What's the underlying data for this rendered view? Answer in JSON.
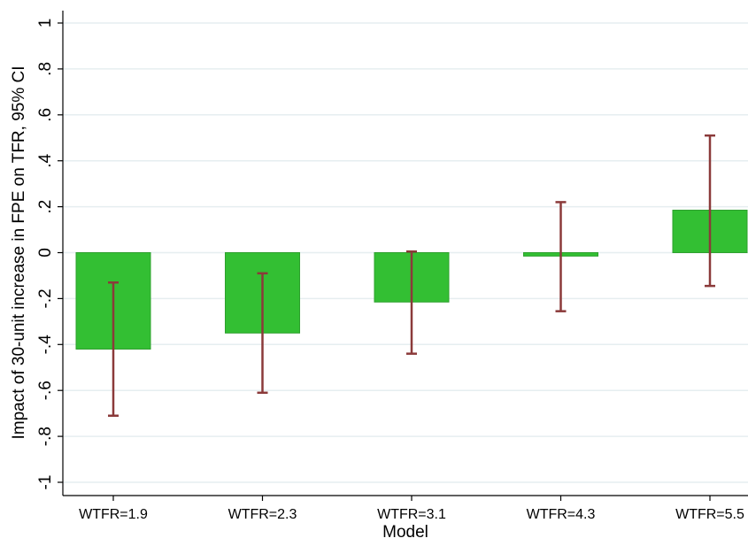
{
  "chart_data": {
    "type": "bar",
    "title": "",
    "xlabel": "Model",
    "ylabel": "Impact of 30-unit increase in FPE on TFR, 95% CI",
    "categories": [
      "WTFR=1.9",
      "WTFR=2.3",
      "WTFR=3.1",
      "WTFR=4.3",
      "WTFR=5.5"
    ],
    "values": [
      -0.42,
      -0.35,
      -0.215,
      -0.015,
      0.185
    ],
    "ci_lower": [
      -0.71,
      -0.61,
      -0.44,
      -0.255,
      -0.145
    ],
    "ci_upper": [
      -0.13,
      -0.09,
      0.005,
      0.22,
      0.51
    ],
    "ylim": [
      -1,
      1
    ],
    "yticks": [
      -1,
      -0.8,
      -0.6,
      -0.4,
      -0.2,
      0,
      0.2,
      0.4,
      0.6,
      0.8,
      1
    ],
    "ytick_labels": [
      "-1",
      "-.8",
      "-.6",
      "-.4",
      "-.2",
      "0",
      ".2",
      ".4",
      ".6",
      ".8",
      "1"
    ],
    "grid": true,
    "legend": "none",
    "colors": {
      "bar_fill": "#33bf33",
      "bar_stroke": "#2ea02e",
      "error_bar": "#8b3a3a",
      "grid": "#e6eef0",
      "axis": "#000000"
    }
  }
}
